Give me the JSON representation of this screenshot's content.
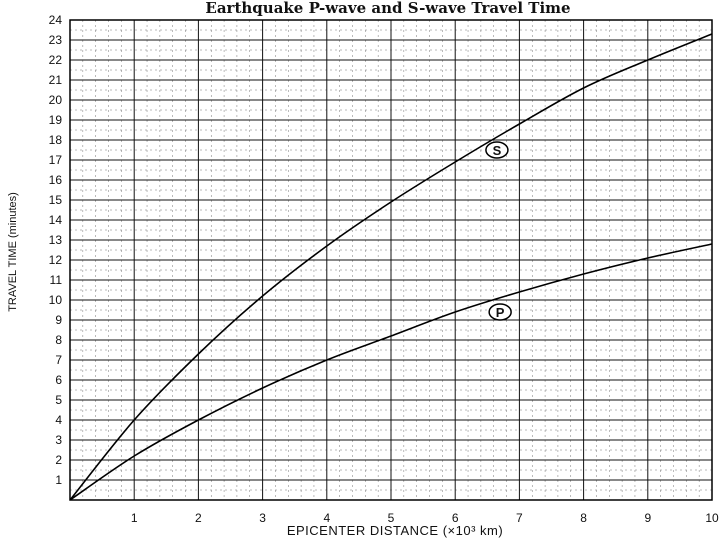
{
  "chart_data": {
    "type": "line",
    "title": "Earthquake P-wave and S-wave Travel Time",
    "xlabel": "EPICENTER DISTANCE (×10³ km)",
    "ylabel": "TRAVEL TIME (minutes)",
    "xlim": [
      0,
      10
    ],
    "ylim": [
      0,
      24
    ],
    "x_ticks": [
      "1",
      "2",
      "3",
      "4",
      "5",
      "6",
      "7",
      "8",
      "9",
      "10"
    ],
    "y_ticks": [
      "1",
      "2",
      "3",
      "4",
      "5",
      "6",
      "7",
      "8",
      "9",
      "10",
      "11",
      "12",
      "13",
      "14",
      "15",
      "16",
      "17",
      "18",
      "19",
      "20",
      "21",
      "22",
      "23",
      "24"
    ],
    "grid": true,
    "series": [
      {
        "name": "S",
        "x": [
          0,
          1,
          2,
          3,
          4,
          5,
          6,
          7,
          8,
          9,
          10
        ],
        "y": [
          0,
          4.0,
          7.3,
          10.2,
          12.7,
          14.9,
          16.9,
          18.8,
          20.6,
          22.0,
          23.3
        ]
      },
      {
        "name": "P",
        "x": [
          0,
          1,
          2,
          3,
          4,
          5,
          6,
          7,
          8,
          9,
          10
        ],
        "y": [
          0,
          2.2,
          4.0,
          5.6,
          7.0,
          8.2,
          9.4,
          10.4,
          11.3,
          12.1,
          12.8
        ]
      }
    ]
  }
}
